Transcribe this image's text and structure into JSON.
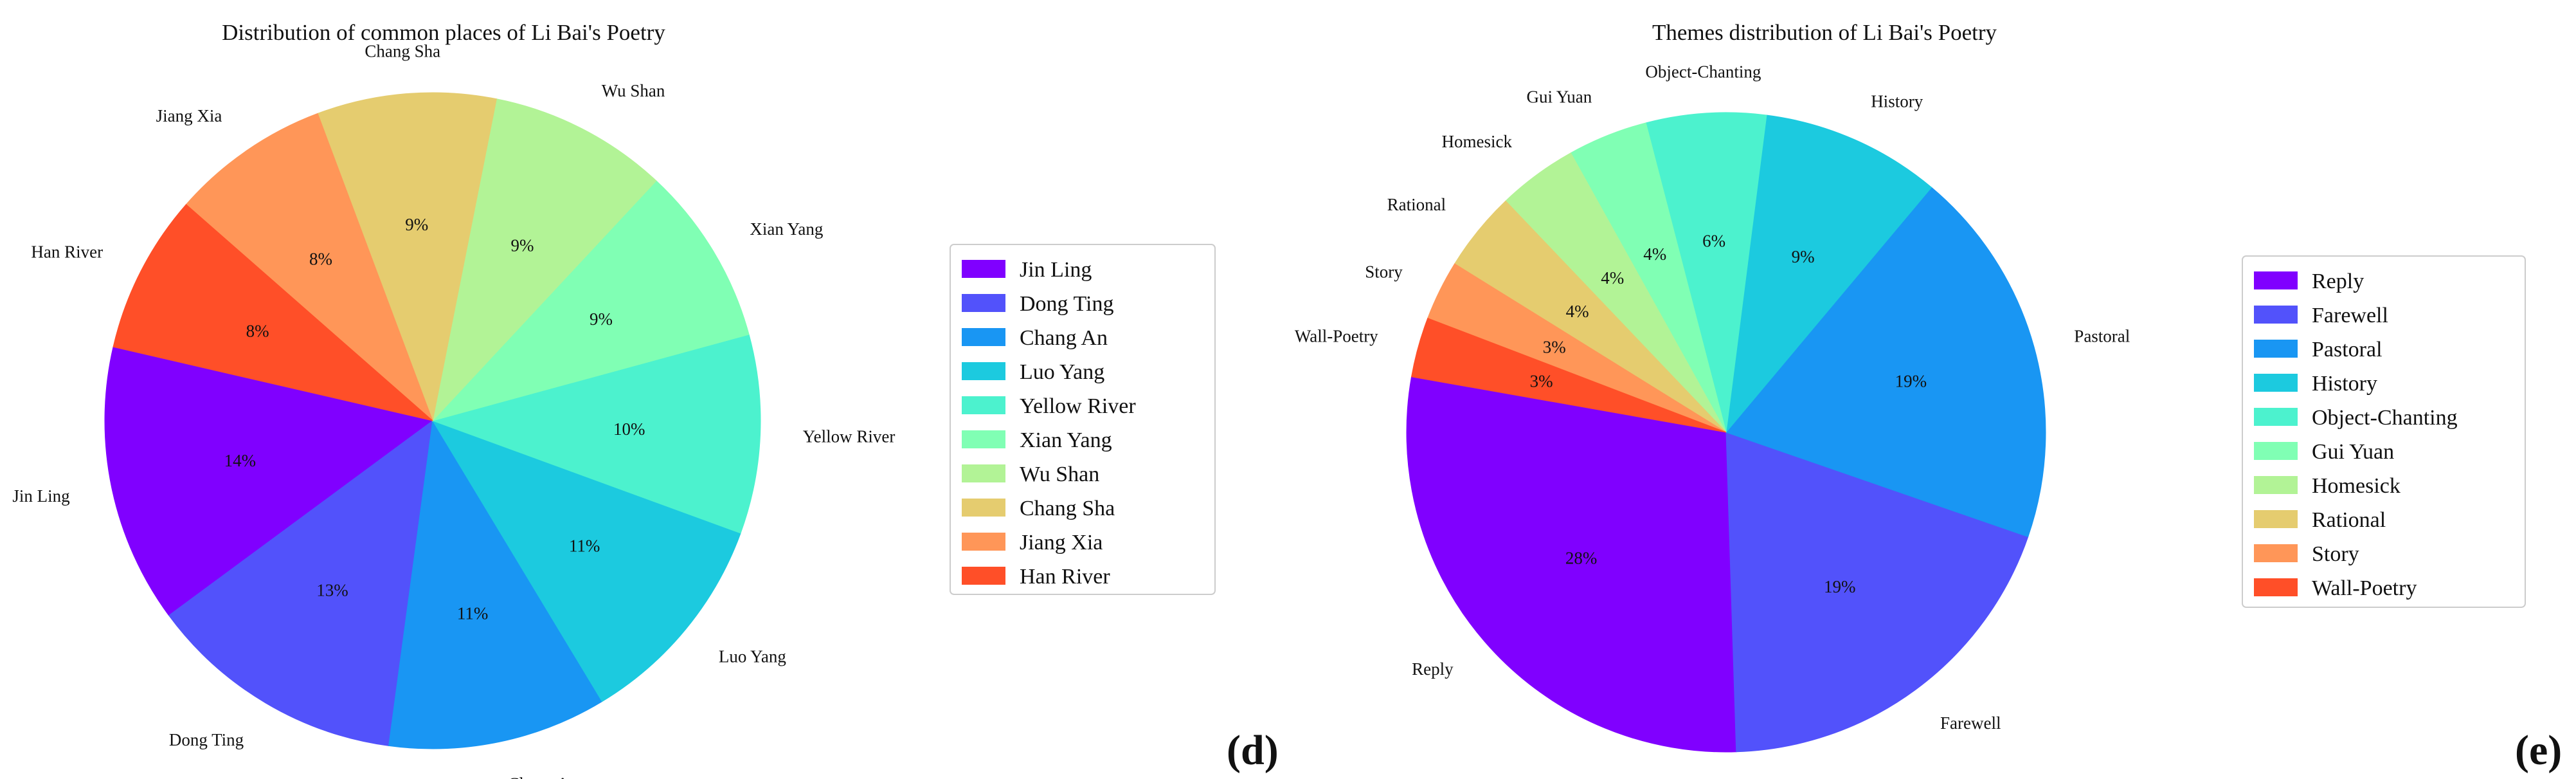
{
  "chart_data": [
    {
      "type": "pie",
      "title": "Distribution of common places of Li Bai's Poetry",
      "panel_label": "d",
      "categories": [
        "Jin Ling",
        "Dong Ting",
        "Chang An",
        "Luo Yang",
        "Yellow River",
        "Xian Yang",
        "Wu Shan",
        "Chang Sha",
        "Jiang Xia",
        "Han River"
      ],
      "values": [
        14,
        13,
        11,
        11,
        10,
        9,
        9,
        9,
        8,
        8
      ],
      "value_labels": [
        "14%",
        "13%",
        "11%",
        "11%",
        "10%",
        "9%",
        "9%",
        "9%",
        "8%",
        "8%"
      ],
      "colors": [
        "#8000ff",
        "#5252fb",
        "#1996f3",
        "#1ccadf",
        "#4cf2ce",
        "#80ffb4",
        "#b2f396",
        "#e5cc6f",
        "#ff9658",
        "#ff4f28"
      ],
      "start_angle_deg": 167,
      "direction": "counterclockwise",
      "legend_position": "right"
    },
    {
      "type": "pie",
      "title": "Themes distribution of Li Bai's Poetry",
      "panel_label": "e",
      "categories": [
        "Reply",
        "Farewell",
        "Pastoral",
        "History",
        "Object-Chanting",
        "Gui Yuan",
        "Homesick",
        "Rational",
        "Story",
        "Wall-Poetry"
      ],
      "values": [
        28,
        19,
        19,
        9,
        6,
        4,
        4,
        4,
        3,
        3
      ],
      "value_labels": [
        "28%",
        "19%",
        "19%",
        "9%",
        "6%",
        "4%",
        "4%",
        "4%",
        "3%",
        "3%"
      ],
      "colors": [
        "#8000ff",
        "#5252fb",
        "#1996f3",
        "#1ccadf",
        "#4cf2ce",
        "#80ffb4",
        "#b2f396",
        "#e5cc6f",
        "#ff9658",
        "#ff4f28"
      ],
      "start_angle_deg": 170,
      "direction": "counterclockwise",
      "legend_position": "right"
    }
  ]
}
